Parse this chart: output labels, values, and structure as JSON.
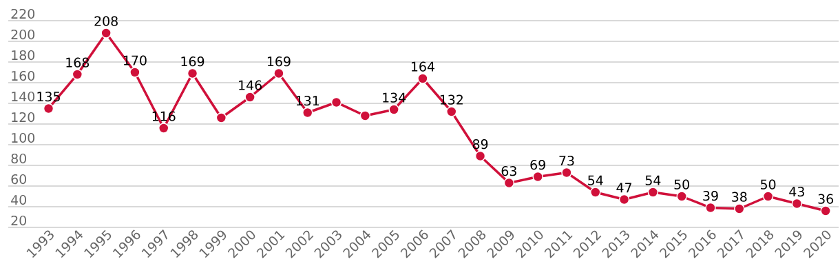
{
  "chart_data": {
    "type": "line",
    "categories": [
      "1993",
      "1994",
      "1995",
      "1996",
      "1997",
      "1998",
      "1999",
      "2000",
      "2001",
      "2002",
      "2003",
      "2004",
      "2005",
      "2006",
      "2007",
      "2008",
      "2009",
      "2010",
      "2011",
      "2012",
      "2013",
      "2014",
      "2015",
      "2016",
      "2017",
      "2018",
      "2019",
      "2020"
    ],
    "series": [
      {
        "color": "#d0103a",
        "values": [
          135,
          168,
          208,
          170,
          116,
          169,
          126,
          146,
          169,
          131,
          141,
          128,
          134,
          164,
          132,
          89,
          63,
          69,
          73,
          54,
          47,
          54,
          50,
          39,
          38,
          50,
          43,
          36
        ],
        "value_labels": [
          "135",
          "168",
          "208",
          "170",
          "116",
          "169",
          null,
          "146",
          "169",
          "131",
          null,
          null,
          "134",
          "164",
          "132",
          "89",
          "63",
          "69",
          "73",
          "54",
          "47",
          "54",
          "50",
          "39",
          "38",
          "50",
          "43",
          "36"
        ]
      }
    ],
    "ylim": [
      20,
      220
    ],
    "yticks": [
      20,
      40,
      60,
      80,
      100,
      120,
      140,
      160,
      180,
      200,
      220
    ],
    "grid": "y",
    "marker": "circle"
  }
}
